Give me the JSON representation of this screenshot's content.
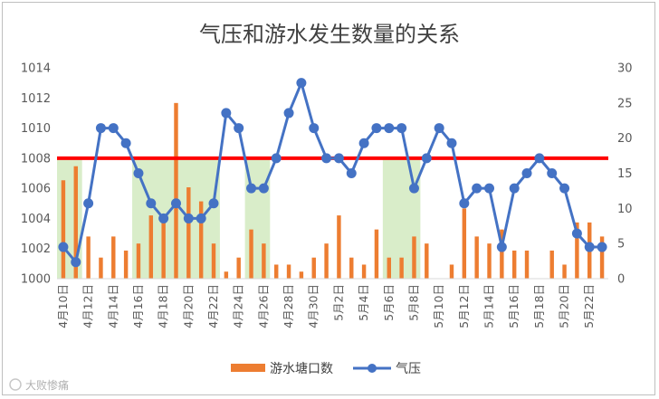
{
  "chart_data": {
    "type": "bar+line",
    "title": "气压和游水发生数量的关系",
    "categories": [
      "4月10日",
      "4月11日",
      "4月12日",
      "4月13日",
      "4月14日",
      "4月15日",
      "4月16日",
      "4月17日",
      "4月18日",
      "4月19日",
      "4月20日",
      "4月21日",
      "4月22日",
      "4月23日",
      "4月24日",
      "4月25日",
      "4月26日",
      "4月27日",
      "4月28日",
      "4月29日",
      "4月30日",
      "5月1日",
      "5月2日",
      "5月3日",
      "5月4日",
      "5月5日",
      "5月6日",
      "5月7日",
      "5月8日",
      "5月9日",
      "5月10日",
      "5月11日",
      "5月12日",
      "5月13日",
      "5月14日",
      "5月15日",
      "5月16日",
      "5月17日",
      "5月18日",
      "5月19日",
      "5月20日",
      "5月21日",
      "5月22日",
      "5月23日"
    ],
    "x_tick_labels": [
      "4月10日",
      "4月12日",
      "4月14日",
      "4月16日",
      "4月18日",
      "4月20日",
      "4月22日",
      "4月24日",
      "4月26日",
      "4月28日",
      "4月30日",
      "5月2日",
      "5月4日",
      "5月6日",
      "5月8日",
      "5月10日",
      "5月12日",
      "5月14日",
      "5月16日",
      "5月18日",
      "5月20日",
      "5月22日"
    ],
    "series": [
      {
        "name": "游水塘口数",
        "axis": "right",
        "kind": "bar",
        "color": "#ED7D31",
        "values": [
          14,
          16,
          6,
          3,
          6,
          4,
          5,
          9,
          9,
          25,
          13,
          11,
          5,
          1,
          3,
          7,
          5,
          2,
          2,
          1,
          3,
          5,
          9,
          3,
          2,
          7,
          3,
          3,
          6,
          5,
          0,
          2,
          10,
          6,
          5,
          7,
          4,
          4,
          0,
          4,
          2,
          8,
          8,
          6
        ]
      },
      {
        "name": "气压",
        "axis": "left",
        "kind": "line",
        "color": "#4472C4",
        "values": [
          1002.1,
          1001.1,
          1005.0,
          1010.0,
          1010.0,
          1009.0,
          1007.0,
          1005.0,
          1004.0,
          1005.0,
          1004.0,
          1004.0,
          1005.0,
          1011.0,
          1010.0,
          1006.0,
          1006.0,
          1008.0,
          1011.0,
          1013.0,
          1010.0,
          1008.0,
          1008.0,
          1007.0,
          1009.0,
          1010.0,
          1010.0,
          1010.0,
          1006.0,
          1008.0,
          1010.0,
          1009.0,
          1005.0,
          1006.0,
          1006.0,
          1002.1,
          1006.0,
          1007.0,
          1008.0,
          1007.0,
          1006.0,
          1003.0,
          1002.1,
          1002.1
        ]
      }
    ],
    "threshold": {
      "value": 1008,
      "color": "#FF0000"
    },
    "highlight_ranges": [
      [
        "4月10日",
        "4月11日"
      ],
      [
        "4月16日",
        "4月22日"
      ],
      [
        "4月25日",
        "4月26日"
      ],
      [
        "5月6日",
        "5月8日"
      ]
    ],
    "highlight_color": "#D9EDC9",
    "y_left": {
      "min": 1000,
      "max": 1014,
      "ticks": [
        "1000",
        "1002",
        "1004",
        "1006",
        "1008",
        "1010",
        "1012",
        "1014"
      ]
    },
    "y_right": {
      "min": 0,
      "max": 30,
      "ticks": [
        "0",
        "5",
        "10",
        "15",
        "20",
        "25",
        "30"
      ]
    },
    "legend_position": "bottom",
    "grid": false
  },
  "watermark": "大败惨痛"
}
